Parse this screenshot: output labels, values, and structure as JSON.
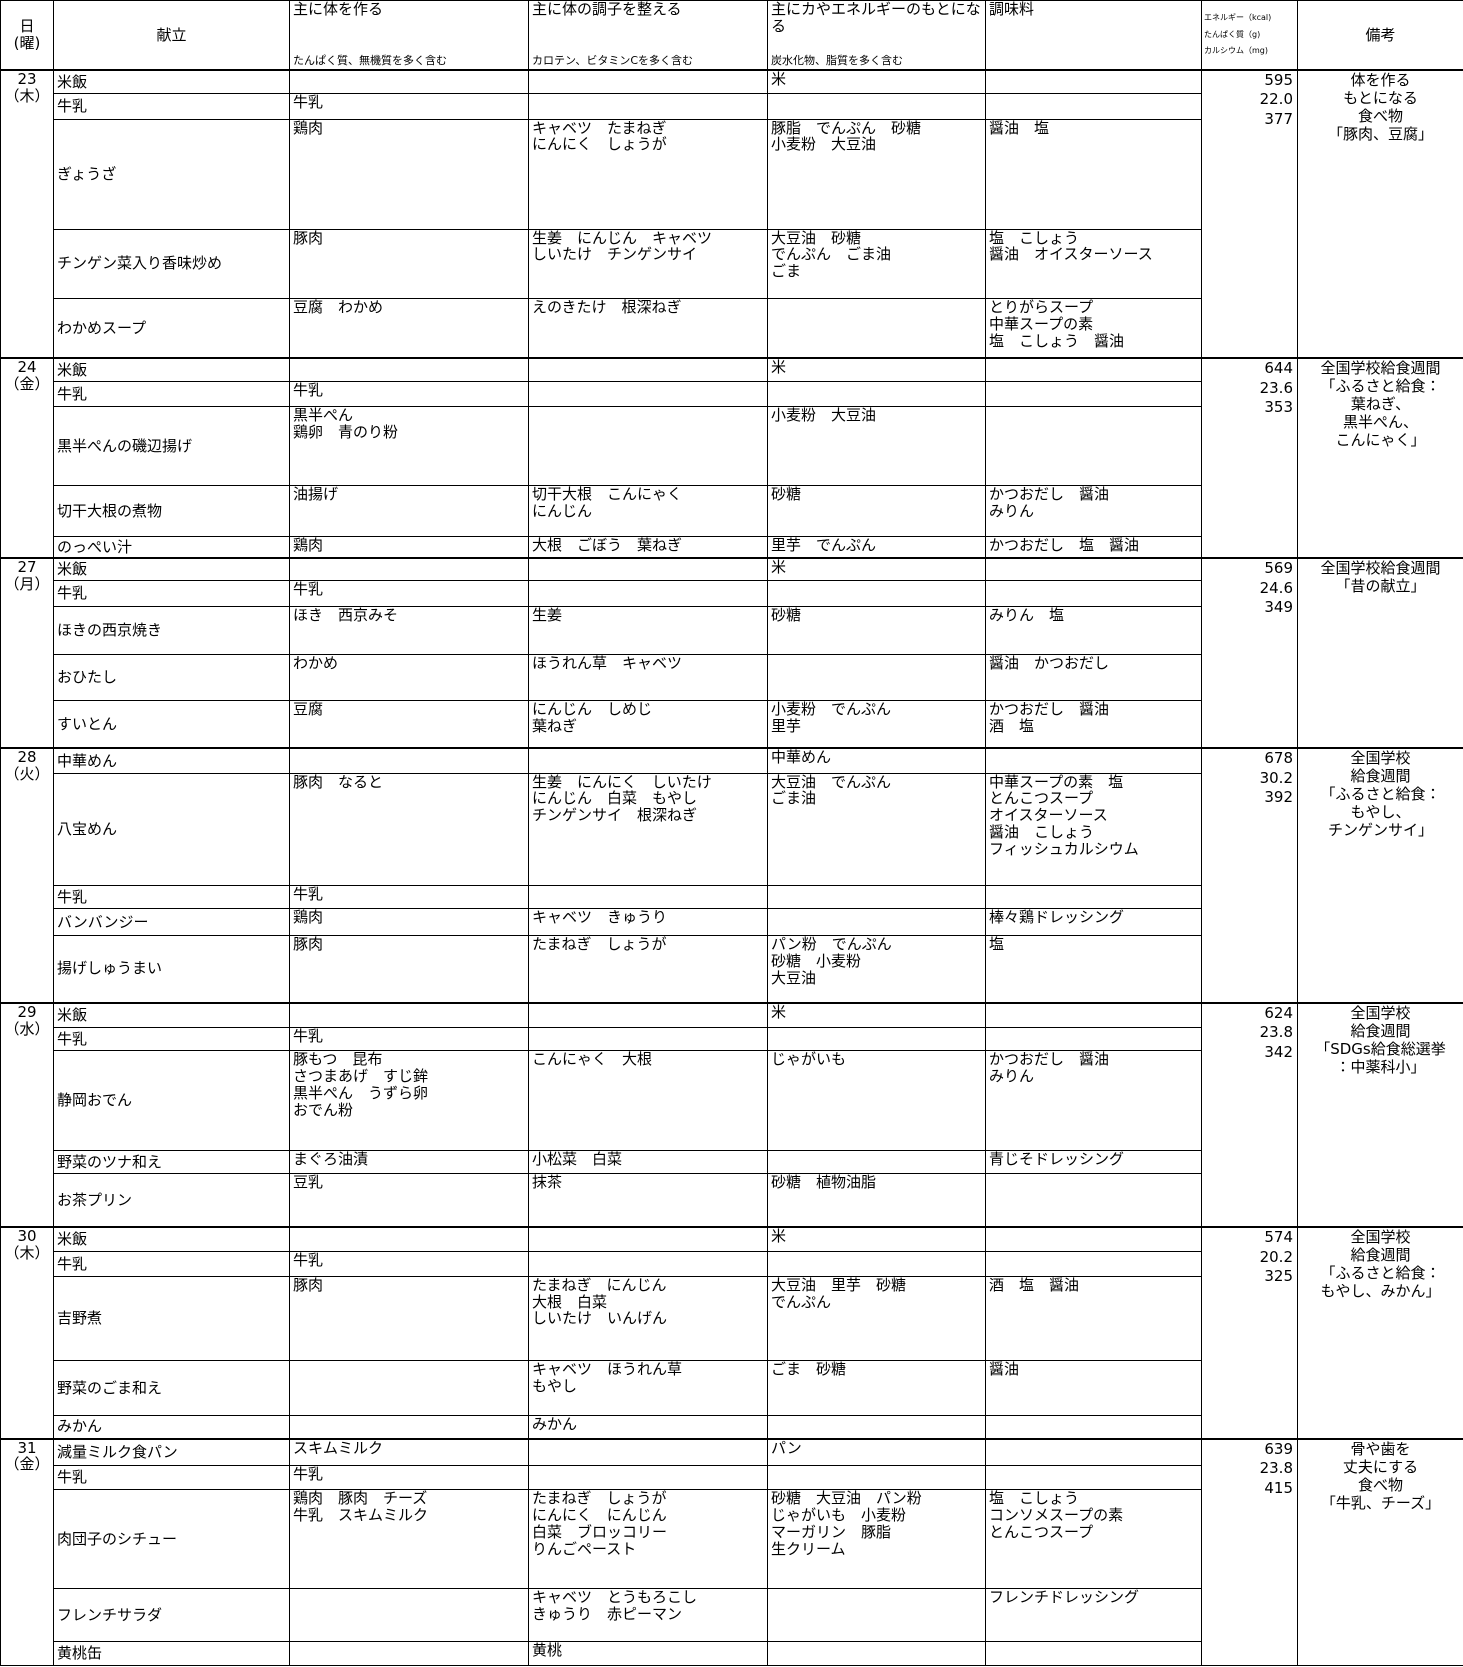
{
  "header": {
    "date": "日\n(曜)",
    "menu": "献立",
    "groups": [
      {
        "title": "主に体を作る",
        "sub": "たんぱく質、無機質を多く含む"
      },
      {
        "title": "主に体の調子を整える",
        "sub": "カロテン、ビタミンCを多く含む"
      },
      {
        "title": "主にカやエネルギーのもとになる",
        "sub": "炭水化物、脂質を多く含む"
      },
      {
        "title": "調味料"
      }
    ],
    "nutrition": [
      "エネルギー（kcal)",
      "たんぱく質（g)",
      "カルシウム（mg)"
    ],
    "notes": "備考"
  },
  "days": [
    {
      "date": "23",
      "weekday": "（木）",
      "nutrition": [
        "595",
        "22.0",
        "377"
      ],
      "notes": "体を作る\nもとになる\n食べ物\n「豚肉、豆腐」",
      "dishes": [
        {
          "name": "米飯",
          "cells": [
            null,
            null,
            "米",
            null
          ]
        },
        {
          "name": "牛乳",
          "cells": [
            "牛乳",
            null,
            null,
            null
          ]
        },
        {
          "name": "ぎょうざ",
          "cells": [
            "鶏肉",
            "キャベツ　たまねぎ\nにんにく　しょうが",
            "豚脂　でんぷん　砂糖\n小麦粉　大豆油",
            "醤油　塩"
          ]
        },
        {
          "name": "チンゲン菜入り香味炒め",
          "cells": [
            "豚肉",
            "生姜　にんじん　キャベツ\nしいたけ　チンゲンサイ",
            "大豆油　砂糖\nでんぷん　ごま油\nごま",
            "塩　こしょう\n醤油　オイスターソース"
          ]
        },
        {
          "name": "わかめスープ",
          "cells": [
            "豆腐　わかめ",
            "えのきたけ　根深ねぎ",
            null,
            "とりがらスープ\n中華スープの素\n塩　こしょう　醤油"
          ]
        }
      ]
    },
    {
      "date": "24",
      "weekday": "（金）",
      "nutrition": [
        "644",
        "23.6",
        "353"
      ],
      "notes": "全国学校給食週間\n「ふるさと給食：\n葉ねぎ、\n黒半ぺん、\nこんにゃく」",
      "dishes": [
        {
          "name": "米飯",
          "cells": [
            null,
            null,
            "米",
            null
          ]
        },
        {
          "name": "牛乳",
          "cells": [
            "牛乳",
            null,
            null,
            null
          ]
        },
        {
          "name": "黒半ぺんの磯辺揚げ",
          "cells": [
            "黒半ぺん\n鶏卵　青のり粉",
            null,
            "小麦粉　大豆油",
            null
          ]
        },
        {
          "name": "切干大根の煮物",
          "cells": [
            "油揚げ",
            "切干大根　こんにゃく\nにんじん",
            "砂糖",
            "かつおだし　醤油\nみりん"
          ]
        },
        {
          "name": "のっぺい汁",
          "cells": [
            "鶏肉",
            "大根　ごぼう　葉ねぎ",
            "里芋　でんぷん",
            "かつおだし　塩　醤油"
          ]
        }
      ]
    },
    {
      "date": "27",
      "weekday": "（月）",
      "nutrition": [
        "569",
        "24.6",
        "349"
      ],
      "notes": "全国学校給食週間\n「昔の献立」",
      "dishes": [
        {
          "name": "米飯",
          "cells": [
            null,
            null,
            "米",
            null
          ]
        },
        {
          "name": "牛乳",
          "cells": [
            "牛乳",
            null,
            null,
            null
          ]
        },
        {
          "name": "ほきの西京焼き",
          "cells": [
            "ほき　西京みそ",
            "生姜",
            "砂糖",
            "みりん　塩"
          ]
        },
        {
          "name": "おひたし",
          "cells": [
            "わかめ",
            "ほうれん草　キャベツ",
            null,
            "醤油　かつおだし"
          ]
        },
        {
          "name": "すいとん",
          "cells": [
            "豆腐",
            "にんじん　しめじ\n葉ねぎ",
            "小麦粉　でんぷん\n里芋",
            "かつおだし　醤油\n酒　塩"
          ]
        }
      ]
    },
    {
      "date": "28",
      "weekday": "（火）",
      "nutrition": [
        "678",
        "30.2",
        "392"
      ],
      "notes": "全国学校\n給食週間\n「ふるさと給食：\nもやし、\nチンゲンサイ」",
      "dishes": [
        {
          "name": "中華めん",
          "cells": [
            null,
            null,
            "中華めん",
            null
          ]
        },
        {
          "name": "八宝めん",
          "cells": [
            "豚肉　なると",
            "生姜　にんにく　しいたけ\nにんじん　白菜　もやし\nチンゲンサイ　根深ねぎ",
            "大豆油　でんぷん\nごま油",
            "中華スープの素　塩\nとんこつスープ\nオイスターソース\n醤油　こしょう\nフィッシュカルシウム"
          ]
        },
        {
          "name": "牛乳",
          "cells": [
            "牛乳",
            null,
            null,
            null
          ]
        },
        {
          "name": "バンバンジー",
          "cells": [
            "鶏肉",
            "キャベツ　きゅうり",
            null,
            "棒々鶏ドレッシング"
          ]
        },
        {
          "name": "揚げしゅうまい",
          "cells": [
            "豚肉",
            "たまねぎ　しょうが",
            "パン粉　でんぷん\n砂糖　小麦粉\n大豆油",
            "塩"
          ]
        }
      ]
    },
    {
      "date": "29",
      "weekday": "（水）",
      "nutrition": [
        "624",
        "23.8",
        "342"
      ],
      "notes": "全国学校\n給食週間\n「SDGs給食総選挙\n：中薬科小」",
      "dishes": [
        {
          "name": "米飯",
          "cells": [
            null,
            null,
            "米",
            null
          ]
        },
        {
          "name": "牛乳",
          "cells": [
            "牛乳",
            null,
            null,
            null
          ]
        },
        {
          "name": "静岡おでん",
          "cells": [
            "豚もつ　昆布\nさつまあげ　すじ鉾\n黒半ぺん　うずら卵\nおでん粉",
            "こんにゃく　大根",
            "じゃがいも",
            "かつおだし　醤油\nみりん"
          ]
        },
        {
          "name": "野菜のツナ和え",
          "cells": [
            "まぐろ油漬",
            "小松菜　白菜",
            null,
            "青じそドレッシング"
          ]
        },
        {
          "name": "お茶プリン",
          "cells": [
            "豆乳",
            "抹茶",
            "砂糖　植物油脂",
            null
          ]
        }
      ]
    },
    {
      "date": "30",
      "weekday": "（木）",
      "nutrition": [
        "574",
        "20.2",
        "325"
      ],
      "notes": "全国学校\n給食週間\n「ふるさと給食：\nもやし、みかん」",
      "dishes": [
        {
          "name": "米飯",
          "cells": [
            null,
            null,
            "米",
            null
          ]
        },
        {
          "name": "牛乳",
          "cells": [
            "牛乳",
            null,
            null,
            null
          ]
        },
        {
          "name": "吉野煮",
          "cells": [
            "豚肉",
            "たまねぎ　にんじん\n大根　白菜\nしいたけ　いんげん",
            "大豆油　里芋　砂糖\nでんぷん",
            "酒　塩　醤油"
          ]
        },
        {
          "name": "野菜のごま和え",
          "cells": [
            null,
            "キャベツ　ほうれん草\nもやし",
            "ごま　砂糖",
            "醤油"
          ]
        },
        {
          "name": "みかん",
          "cells": [
            null,
            "みかん",
            null,
            null
          ]
        }
      ]
    },
    {
      "date": "31",
      "weekday": "（金）",
      "nutrition": [
        "639",
        "23.8",
        "415"
      ],
      "notes": "骨や歯を\n丈夫にする\n食べ物\n「牛乳、チーズ」",
      "dishes": [
        {
          "name": "減量ミルク食パン",
          "cells": [
            "スキムミルク",
            null,
            "パン",
            null
          ]
        },
        {
          "name": "牛乳",
          "cells": [
            "牛乳",
            null,
            null,
            null
          ]
        },
        {
          "name": "肉団子のシチュー",
          "cells": [
            "鶏肉　豚肉　チーズ\n牛乳　スキムミルク",
            "たまねぎ　しょうが\nにんにく　にんじん\n白菜　ブロッコリー\nりんごペースト",
            "砂糖　大豆油　パン粉\nじゃがいも　小麦粉\nマーガリン　豚脂\n生クリーム",
            "塩　こしょう\nコンソメスープの素\nとんこつスープ"
          ]
        },
        {
          "name": "フレンチサラダ",
          "cells": [
            null,
            "キャベツ　とうもろこし\nきゅうり　赤ピーマン",
            null,
            "フレンチドレッシング"
          ]
        },
        {
          "name": "黄桃缶",
          "cells": [
            null,
            "黄桃",
            null,
            null
          ]
        }
      ]
    }
  ]
}
